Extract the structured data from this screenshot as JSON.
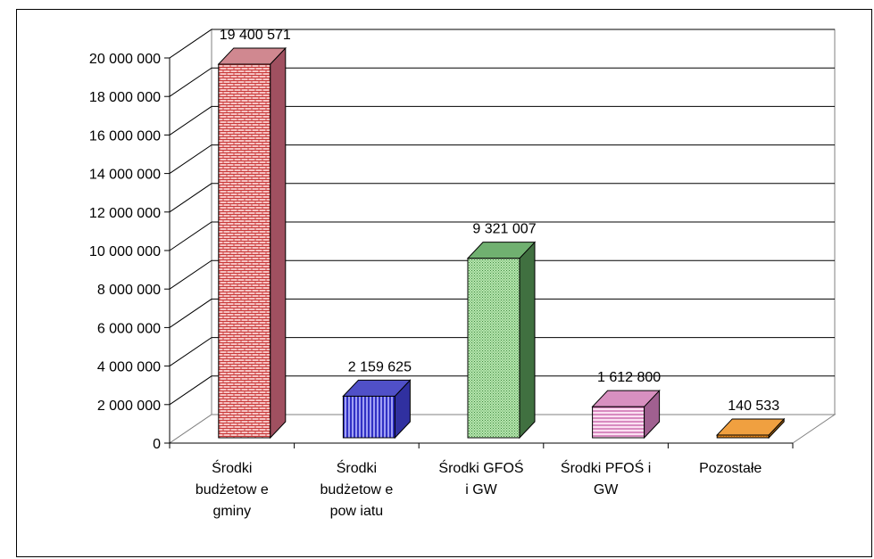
{
  "chart_data": {
    "type": "bar",
    "title": "",
    "xlabel": "",
    "ylabel": "",
    "categories": [
      [
        "Środki",
        "budżetow e",
        "gminy"
      ],
      [
        "Środki",
        "budżetow e",
        "pow iatu"
      ],
      [
        "Środki GFOŚ",
        "i GW"
      ],
      [
        "Środki PFOŚ i",
        "GW"
      ],
      [
        "Pozostałe"
      ]
    ],
    "values": [
      19400571,
      2159625,
      9321007,
      1612800,
      140533
    ],
    "data_labels": [
      "19 400 571",
      "2 159 625",
      "9 321 007",
      "1 612 800",
      "140 533"
    ],
    "yticks": [
      "0",
      "2 000 000",
      "4 000 000",
      "6 000 000",
      "8 000 000",
      "10 000 000",
      "12 000 000",
      "14 000 000",
      "16 000 000",
      "18 000 000",
      "20 000 000"
    ],
    "ylim": [
      0,
      20000000
    ],
    "grid": true,
    "legend": "none",
    "colors": [
      {
        "front": "#f4c0c0",
        "pattern": "#c03030",
        "side": "#a05060",
        "top": "#d08890"
      },
      {
        "front": "#8888ee",
        "pattern": "#0000a0",
        "side": "#3030a0",
        "top": "#5050c8"
      },
      {
        "front": "#a8e0a0",
        "pattern": "#408040",
        "side": "#407040",
        "top": "#70b070"
      },
      {
        "front": "#f4c8e8",
        "pattern": "#c050a0",
        "side": "#a06090",
        "top": "#d890c0"
      },
      {
        "front": "#e08820",
        "pattern": "#b06010",
        "side": "#a06010",
        "top": "#f0a040"
      }
    ]
  }
}
